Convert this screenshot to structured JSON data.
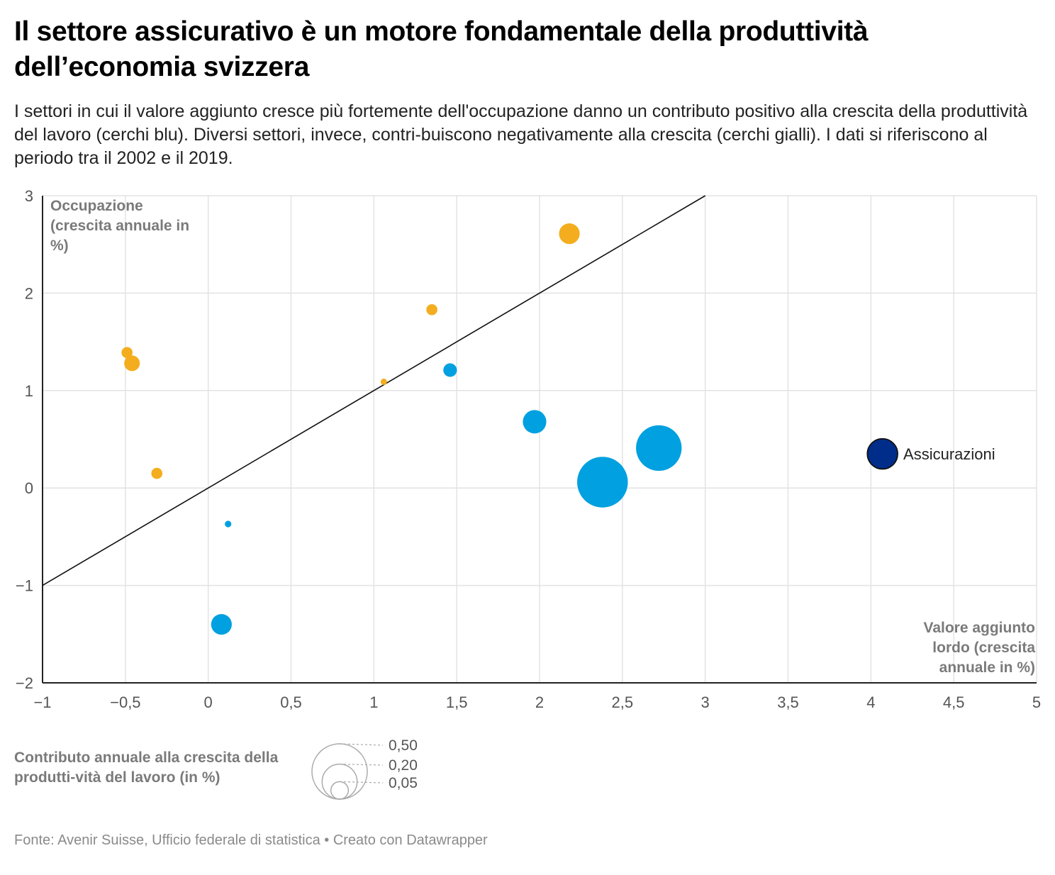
{
  "title": "Il settore assicurativo è un motore fondamentale della produttività dell’economia svizzera",
  "subtitle": "I settori in cui il valore aggiunto cresce più fortemente dell'occupazione danno un contributo positivo alla crescita della produttività del lavoro (cerchi blu). Diversi settori, invece, contri-buiscono negativamente alla crescita (cerchi gialli). I dati si riferiscono al periodo tra il 2002 e il 2019.",
  "footer": {
    "source": "Fonte: Avenir Suisse, Ufficio federale di statistica",
    "separator": " • ",
    "credit": "Creato con Datawrapper"
  },
  "colors": {
    "positive": "#01a0e0",
    "negative": "#f4ad1e",
    "highlight": "#002d8a",
    "grid": "#e3e3e3",
    "axis": "#222222"
  },
  "chart_data": {
    "type": "scatter",
    "xlabel_lines": [
      "Valore aggiunto",
      "lordo (crescita",
      "annuale in %)"
    ],
    "ylabel_lines": [
      "Occupazione",
      "(crescita annuale in",
      "%)"
    ],
    "xlim": [
      -1,
      5
    ],
    "ylim": [
      -2,
      3
    ],
    "x_ticks": [
      -1,
      -0.5,
      0,
      0.5,
      1,
      1.5,
      2,
      2.5,
      3,
      3.5,
      4,
      4.5,
      5
    ],
    "x_tick_labels": [
      "−1",
      "−0,5",
      "0",
      "0,5",
      "1",
      "1,5",
      "2",
      "2,5",
      "3",
      "3,5",
      "4",
      "4,5",
      "5"
    ],
    "y_ticks": [
      -2,
      -1,
      0,
      1,
      2,
      3
    ],
    "y_tick_labels": [
      "−2",
      "−1",
      "0",
      "1",
      "2",
      "3"
    ],
    "reference_line": {
      "from": [
        -1,
        -1
      ],
      "to": [
        3,
        3
      ]
    },
    "size_legend": {
      "title": "Contributo annuale alla crescita della produtti-vità del lavoro (in %)",
      "values": [
        0.5,
        0.2,
        0.05
      ],
      "labels": [
        "0,50",
        "0,20",
        "0,05"
      ]
    },
    "points": [
      {
        "x": 2.18,
        "y": 2.61,
        "size": 0.07,
        "group": "negative",
        "label": ""
      },
      {
        "x": 1.35,
        "y": 1.83,
        "size": 0.02,
        "group": "negative",
        "label": ""
      },
      {
        "x": -0.49,
        "y": 1.39,
        "size": 0.02,
        "group": "negative",
        "label": ""
      },
      {
        "x": -0.46,
        "y": 1.28,
        "size": 0.04,
        "group": "negative",
        "label": ""
      },
      {
        "x": 1.06,
        "y": 1.09,
        "size": 0.006,
        "group": "negative",
        "label": ""
      },
      {
        "x": -0.31,
        "y": 0.15,
        "size": 0.02,
        "group": "negative",
        "label": ""
      },
      {
        "x": 1.46,
        "y": 1.21,
        "size": 0.03,
        "group": "positive",
        "label": ""
      },
      {
        "x": 1.97,
        "y": 0.68,
        "size": 0.09,
        "group": "positive",
        "label": ""
      },
      {
        "x": 2.72,
        "y": 0.41,
        "size": 0.34,
        "group": "positive",
        "label": ""
      },
      {
        "x": 2.38,
        "y": 0.06,
        "size": 0.42,
        "group": "positive",
        "label": ""
      },
      {
        "x": 0.12,
        "y": -0.37,
        "size": 0.007,
        "group": "positive",
        "label": ""
      },
      {
        "x": 0.08,
        "y": -1.4,
        "size": 0.07,
        "group": "positive",
        "label": ""
      },
      {
        "x": 4.07,
        "y": 0.35,
        "size": 0.15,
        "group": "highlight",
        "label": "Assicurazioni"
      }
    ]
  }
}
